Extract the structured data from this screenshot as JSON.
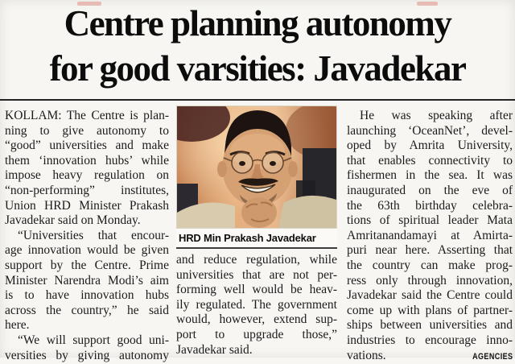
{
  "headline": {
    "line1": "Centre planning autonomy",
    "line2": "for good varsities: Javadekar"
  },
  "photo": {
    "caption": "HRD Min Prakash Javadekar"
  },
  "credit": "AGENCIES",
  "columns": {
    "left": {
      "paragraphs": [
        {
          "lines": [
            "KOLLAM: The Centre is plan-",
            "ning to give autonomy to",
            "“good” universities and make",
            "them ‘innovation hubs’ while",
            "impose heavy regulation on",
            "“non-performing” institutes,",
            "Union HRD Minister Prakash",
            "Javadekar said on Monday."
          ]
        },
        {
          "lines": [
            "“Universities that encour-",
            "age innovation would be given",
            "support by the Centre. Prime",
            "Minister Narendra Modi’s aim",
            "is to have innovation hubs",
            "across the country,” he said",
            "here."
          ]
        },
        {
          "lines": [
            "“We will support good uni-",
            "versities by giving autonomy"
          ]
        }
      ]
    },
    "middle": {
      "paragraphs": [
        {
          "lines": [
            "and reduce regulation, while",
            "universities that are not per-",
            "forming well would be heav-",
            "ily regulated. The government",
            "would, however, extend sup-",
            "port to upgrade those,”",
            "Javadekar said."
          ]
        }
      ]
    },
    "right": {
      "paragraphs": [
        {
          "lines": [
            "He was speaking after",
            "launching ‘OceanNet’, devel-",
            "oped by Amrita University,",
            "that enables connectivity to",
            "fishermen in the sea. It was",
            "inaugurated on the eve of",
            "the 63th birthday celebra-",
            "tions of spiritual leader Mata",
            "Amritanandamayi at Amirta-",
            "puri near here. Asserting that",
            "the country can make prog-",
            "ress only through innovation,",
            "Javadekar said the Centre could",
            "come up with plans of partner-",
            "ships between universities and",
            "industries to encourage inno-"
          ]
        }
      ],
      "last_line": "vations."
    }
  },
  "colors": {
    "page_bg": "#f7f6f2",
    "ink": "#1c1c1c",
    "scan_mark": "#de8f86",
    "photo_warm": "#dd9a60",
    "photo_chair": "#26262b"
  }
}
